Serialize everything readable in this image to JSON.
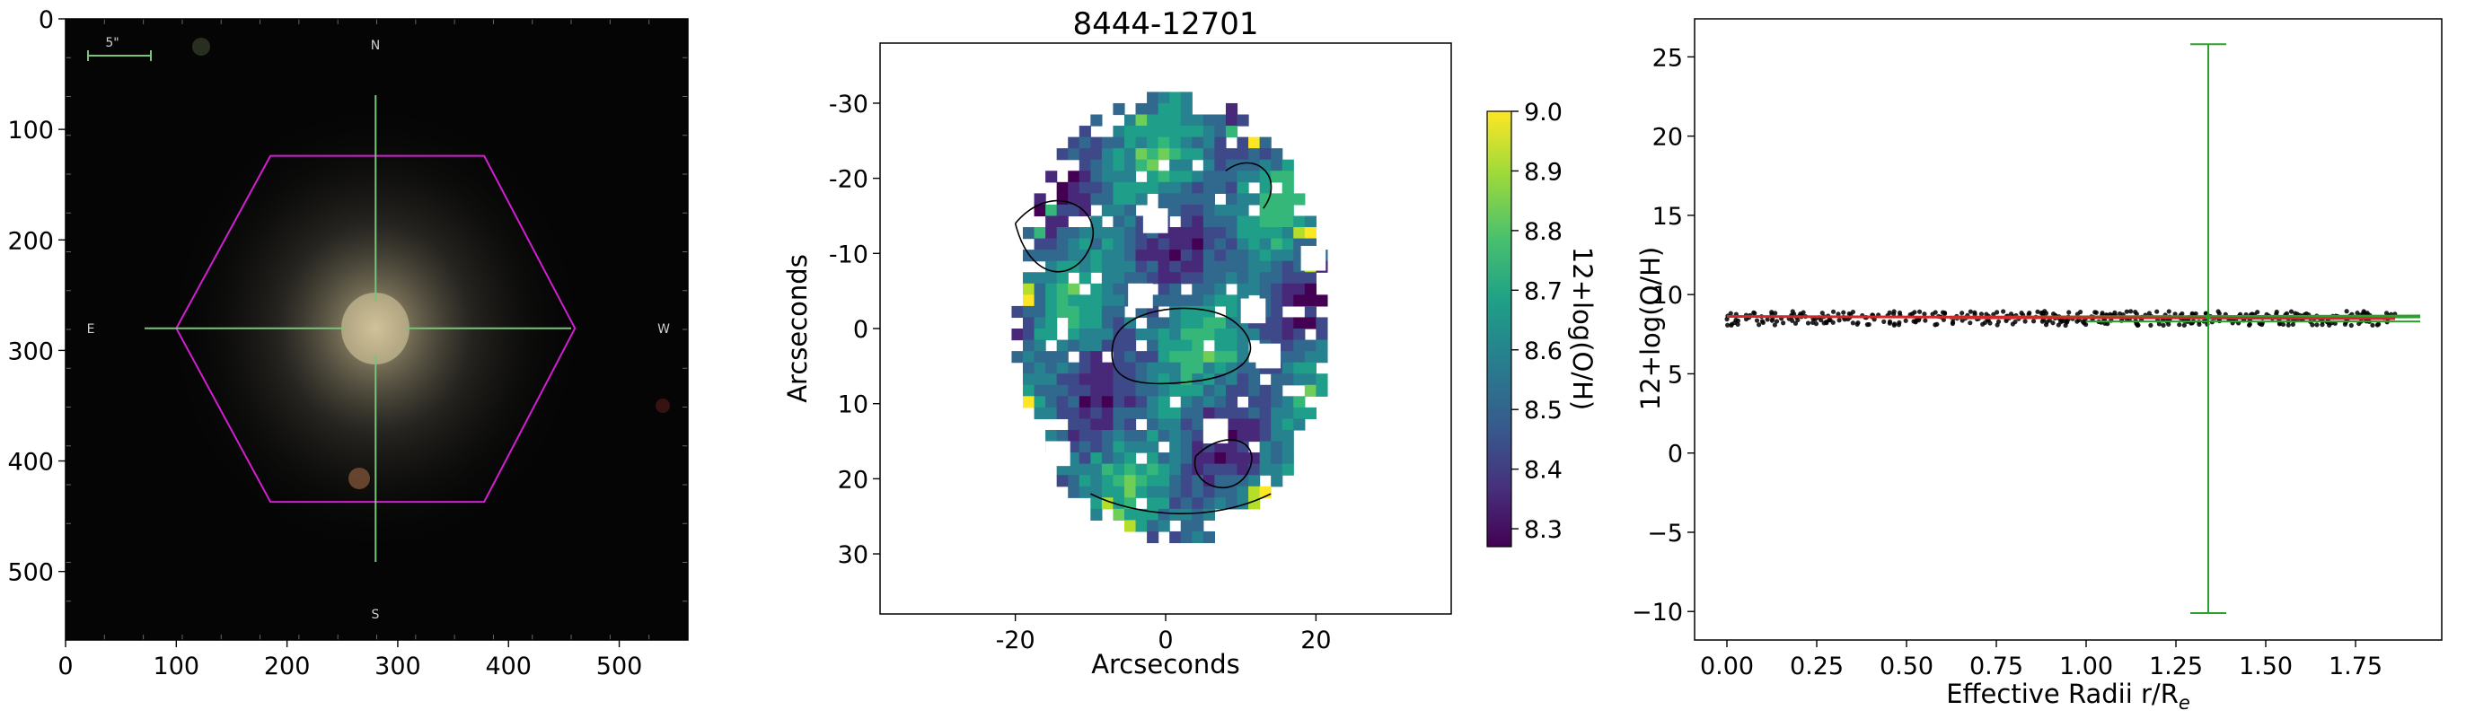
{
  "chart_data": [
    {
      "type": "image",
      "panel": "galaxy-image",
      "xlim": [
        0,
        562
      ],
      "ylim": [
        562,
        0
      ],
      "x_ticks": [
        0,
        100,
        200,
        300,
        400,
        500
      ],
      "y_ticks": [
        0,
        100,
        200,
        300,
        400,
        500
      ],
      "scale_bar_label": "5\"",
      "compass": {
        "north": "N",
        "south": "S",
        "east": "E",
        "west": "W"
      },
      "ifu_hexagon_vertices": [
        [
          185,
          124
        ],
        [
          378,
          124
        ],
        [
          460,
          280
        ],
        [
          378,
          437
        ],
        [
          185,
          437
        ],
        [
          100,
          280
        ]
      ],
      "crosshair_center": [
        280,
        280
      ],
      "hexagon_color": "#d21ed2",
      "crosshair_color": "#79c479"
    },
    {
      "type": "heatmap",
      "panel": "metallicity-map",
      "title": "8444-12701",
      "xlabel": "Arcseconds",
      "ylabel": "Arcseconds",
      "xlim": [
        -38,
        38
      ],
      "ylim": [
        38,
        -38
      ],
      "x_ticks": [
        -20,
        0,
        20
      ],
      "y_ticks": [
        -30,
        -20,
        -10,
        0,
        10,
        20,
        30
      ],
      "colorbar": {
        "label": "12+log(O/H)",
        "min": 8.27,
        "max": 9.0,
        "ticks": [
          "8.3",
          "8.4",
          "8.5",
          "8.6",
          "8.7",
          "8.8",
          "8.9",
          "9.0"
        ],
        "colormap": "viridis"
      }
    },
    {
      "type": "scatter",
      "panel": "radial-profile",
      "xlabel": "Effective Radii r/R",
      "xlabel_sub": "e",
      "ylabel": "12+log(O/H)",
      "xlim": [
        -0.09,
        1.99
      ],
      "ylim": [
        -11.8,
        27.4
      ],
      "x_ticks": [
        "0.00",
        "0.25",
        "0.50",
        "0.75",
        "1.00",
        "1.25",
        "1.50",
        "1.75"
      ],
      "y_ticks": [
        "−10",
        "−5",
        "0",
        "5",
        "10",
        "15",
        "20",
        "25"
      ],
      "points_mean": 8.5,
      "errorbar": {
        "x": 1.34,
        "low": -10.1,
        "high": 25.8,
        "y": 8.6
      },
      "fit_line": {
        "x": [
          0.0,
          1.86
        ],
        "y": [
          8.62,
          8.48
        ]
      },
      "band_line": {
        "x": [
          0.62,
          1.93
        ],
        "y": [
          8.55,
          8.62
        ]
      },
      "points_color": "#000000",
      "fit_color": "#d62728",
      "band_color": "#2ca02c"
    }
  ]
}
